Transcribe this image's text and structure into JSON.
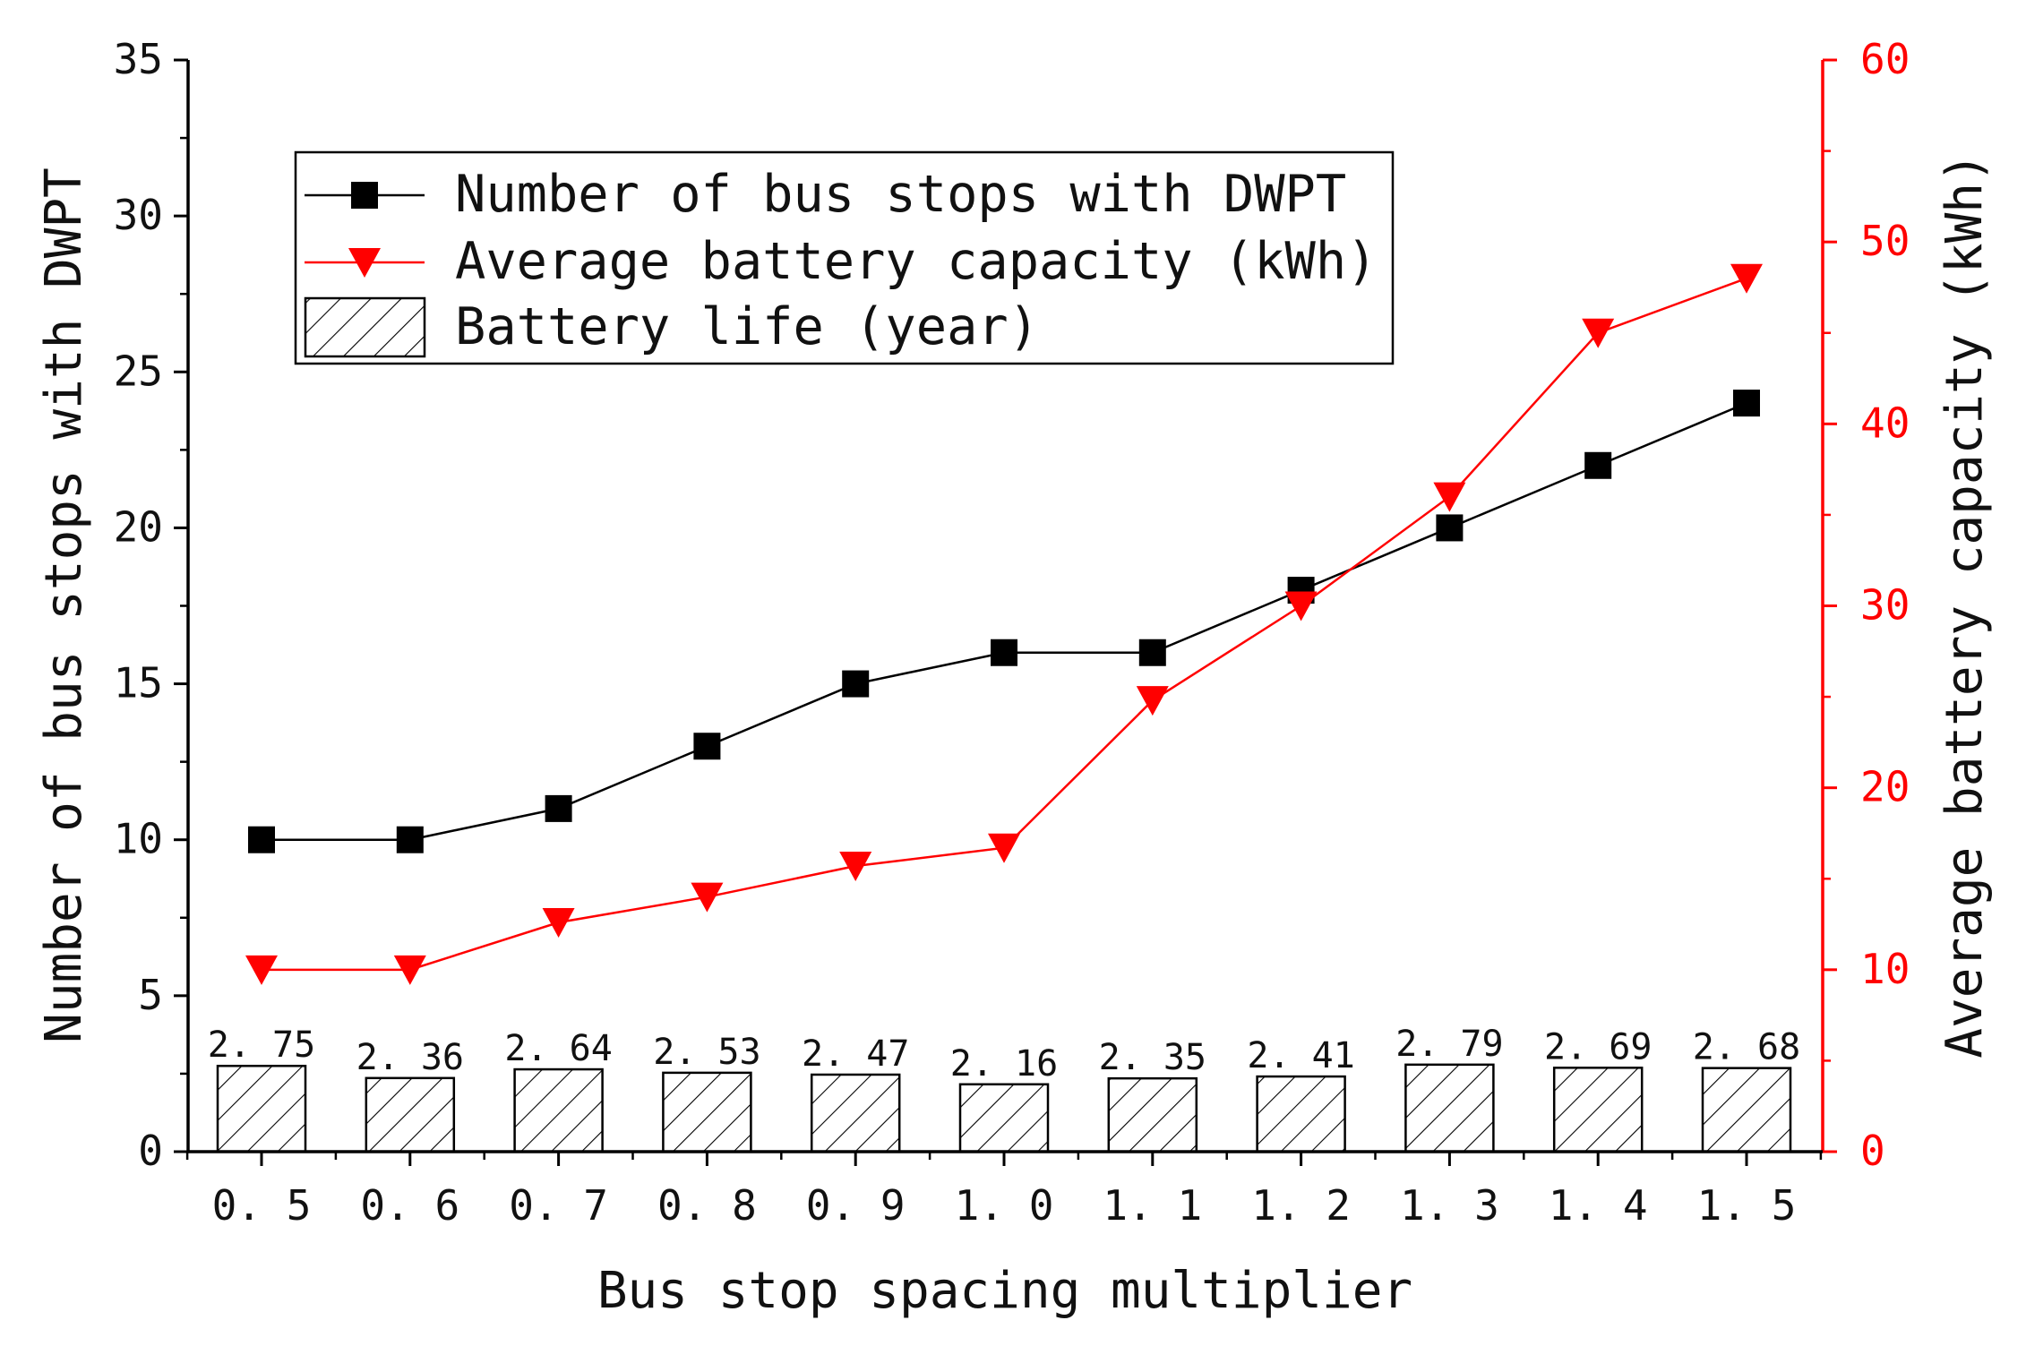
{
  "chart_data": {
    "type": "bar",
    "categories": [
      "0.5",
      "0.6",
      "0.7",
      "0.8",
      "0.9",
      "1.0",
      "1.1",
      "1.2",
      "1.3",
      "1.4",
      "1.5"
    ],
    "category_labels": [
      "0. 5",
      "0. 6",
      "0. 7",
      "0. 8",
      "0. 9",
      "1. 0",
      "1. 1",
      "1. 2",
      "1. 3",
      "1. 4",
      "1. 5"
    ],
    "xlabel": "Bus stop spacing multiplier",
    "ylabel": "Number of bus stops with DWPT",
    "y2label": "Average battery capacity (kWh)",
    "ylim": [
      0,
      35
    ],
    "y2lim": [
      0,
      60
    ],
    "yticks": [
      0,
      5,
      10,
      15,
      20,
      25,
      30,
      35
    ],
    "y2ticks": [
      0,
      10,
      20,
      30,
      40,
      50,
      60
    ],
    "series": [
      {
        "name": "Number of bus stops with DWPT",
        "type": "line",
        "axis": "left",
        "marker": "square",
        "color": "#000000",
        "values": [
          10,
          10,
          11,
          13,
          15,
          16,
          16,
          18,
          20,
          22,
          24
        ]
      },
      {
        "name": "Average battery capacity (kWh)",
        "type": "line",
        "axis": "right",
        "marker": "triangle-down",
        "color": "#ff0000",
        "values": [
          10,
          10,
          12.6,
          14,
          15.7,
          16.7,
          24.8,
          30,
          36,
          45,
          48
        ]
      },
      {
        "name": "Battery life (year)",
        "type": "bar",
        "axis": "left",
        "pattern": "hatched",
        "color": "#000000",
        "values": [
          2.75,
          2.36,
          2.64,
          2.53,
          2.47,
          2.16,
          2.35,
          2.41,
          2.79,
          2.69,
          2.68
        ],
        "labels": [
          "2. 75",
          "2. 36",
          "2. 64",
          "2. 53",
          "2. 47",
          "2. 16",
          "2. 35",
          "2. 41",
          "2. 79",
          "2. 69",
          "2. 68"
        ]
      }
    ],
    "legend": {
      "position": "top-left",
      "entries": [
        "Number of bus stops with DWPT",
        "Average battery capacity (kWh)",
        "Battery life (year)"
      ]
    }
  }
}
